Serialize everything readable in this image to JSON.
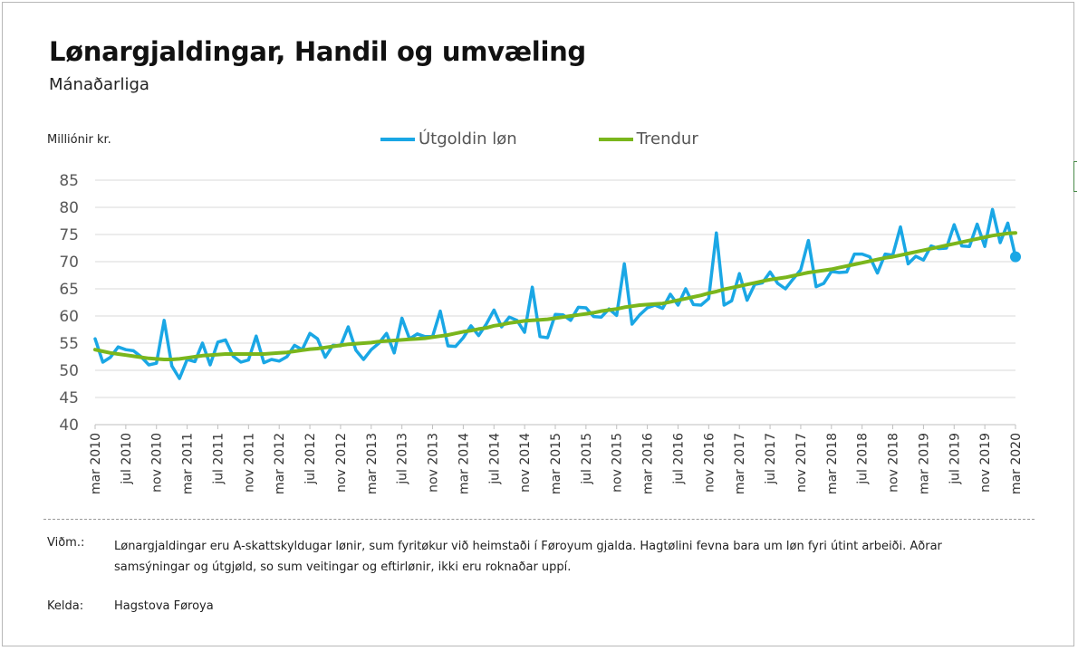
{
  "header": {
    "title": "Lønargjaldingar, Handil og umvæling",
    "subtitle": "Mánaðarliga",
    "unit_label": "Milliónir kr."
  },
  "legend": {
    "series1": "Útgoldin løn",
    "series2": "Trendur"
  },
  "footer": {
    "note_label": "Viðm.:",
    "note_text": "Lønargjaldingar eru A-skattskyldugar lønir, sum fyritøkur við heimstaði í Føroyum gjalda. Hagtølini fevna bara um løn fyri útint arbeiði. Aðrar samsýningar og útgjøld, so sum veitingar og eftirlønir, ikki eru roknaðar uppí.",
    "source_label": "Kelda:",
    "source_text": "Hagstova Føroya"
  },
  "colors": {
    "series1": "#1aa7e5",
    "series2": "#7ab61c",
    "grid": "#d9d9d9",
    "axis_text": "#595959"
  },
  "chart_data": {
    "type": "line",
    "ylim": [
      40,
      85
    ],
    "yticks": [
      40,
      45,
      50,
      55,
      60,
      65,
      70,
      75,
      80,
      85
    ],
    "grid": true,
    "legend_position": "top",
    "x_start": "2010-03",
    "x_tick_labels": [
      "mar 2010",
      "jul 2010",
      "nov 2010",
      "mar 2011",
      "jul 2011",
      "nov 2011",
      "mar 2012",
      "jul 2012",
      "nov 2012",
      "mar 2013",
      "jul 2013",
      "nov 2013",
      "mar 2014",
      "jul 2014",
      "nov 2014",
      "mar 2015",
      "jul 2015",
      "nov 2015",
      "mar 2016",
      "jul 2016",
      "nov 2016",
      "mar 2017",
      "jul 2017",
      "nov 2017",
      "mar 2018",
      "jul 2018",
      "nov 2018",
      "mar 2019",
      "jul 2019",
      "nov 2019",
      "mar 2020"
    ],
    "series": [
      {
        "name": "Útgoldin løn",
        "values": [
          55.8,
          51.5,
          52.4,
          54.3,
          53.8,
          53.6,
          52.5,
          51.0,
          51.3,
          59.2,
          50.8,
          48.5,
          52.0,
          51.6,
          55.0,
          51.0,
          55.2,
          55.6,
          52.6,
          51.5,
          51.9,
          56.3,
          51.4,
          52.0,
          51.7,
          52.5,
          54.6,
          53.8,
          56.8,
          55.8,
          52.4,
          54.6,
          54.5,
          58.0,
          53.7,
          52.0,
          53.8,
          55.0,
          56.8,
          53.2,
          59.6,
          55.8,
          56.7,
          56.2,
          56.2,
          60.9,
          54.5,
          54.4,
          56.0,
          58.2,
          56.4,
          58.5,
          61.1,
          58.0,
          59.8,
          59.2,
          57.0,
          65.3,
          56.2,
          56.0,
          60.3,
          60.2,
          59.2,
          61.6,
          61.5,
          59.9,
          59.8,
          61.3,
          60.1,
          69.6,
          58.5,
          60.2,
          61.5,
          62.0,
          61.4,
          64.0,
          62.0,
          65.0,
          62.1,
          62.0,
          63.2,
          75.3,
          62.0,
          62.8,
          67.8,
          62.9,
          65.8,
          66.1,
          68.1,
          66.0,
          65.0,
          66.8,
          68.5,
          73.9,
          65.4,
          66.0,
          68.2,
          68.0,
          68.1,
          71.4,
          71.4,
          70.9,
          67.9,
          71.4,
          71.2,
          76.4,
          69.6,
          71.0,
          70.3,
          72.9,
          72.4,
          72.5,
          76.8,
          72.9,
          72.8,
          76.9,
          72.8,
          79.6,
          73.5,
          77.1,
          70.9
        ]
      },
      {
        "name": "Trendur",
        "values": [
          53.8,
          53.5,
          53.2,
          53.0,
          52.8,
          52.6,
          52.4,
          52.2,
          52.1,
          52.0,
          52.0,
          52.1,
          52.3,
          52.5,
          52.7,
          52.8,
          52.9,
          53.0,
          53.0,
          53.0,
          53.0,
          53.0,
          53.0,
          53.1,
          53.2,
          53.3,
          53.5,
          53.7,
          53.9,
          54.0,
          54.2,
          54.4,
          54.6,
          54.8,
          54.9,
          55.0,
          55.1,
          55.3,
          55.4,
          55.5,
          55.6,
          55.7,
          55.8,
          55.9,
          56.1,
          56.3,
          56.5,
          56.8,
          57.1,
          57.3,
          57.6,
          57.8,
          58.2,
          58.4,
          58.7,
          58.9,
          59.1,
          59.2,
          59.3,
          59.4,
          59.6,
          59.8,
          60.0,
          60.2,
          60.4,
          60.6,
          60.9,
          61.1,
          61.3,
          61.6,
          61.8,
          62.0,
          62.1,
          62.2,
          62.3,
          62.6,
          62.9,
          63.2,
          63.5,
          63.8,
          64.2,
          64.5,
          64.9,
          65.2,
          65.5,
          65.8,
          66.1,
          66.4,
          66.7,
          66.9,
          67.1,
          67.4,
          67.7,
          68.0,
          68.2,
          68.4,
          68.6,
          68.9,
          69.2,
          69.5,
          69.8,
          70.1,
          70.4,
          70.7,
          70.9,
          71.2,
          71.5,
          71.8,
          72.1,
          72.4,
          72.7,
          73.0,
          73.3,
          73.6,
          73.9,
          74.2,
          74.5,
          74.8,
          75.0,
          75.2,
          75.3
        ]
      }
    ]
  }
}
